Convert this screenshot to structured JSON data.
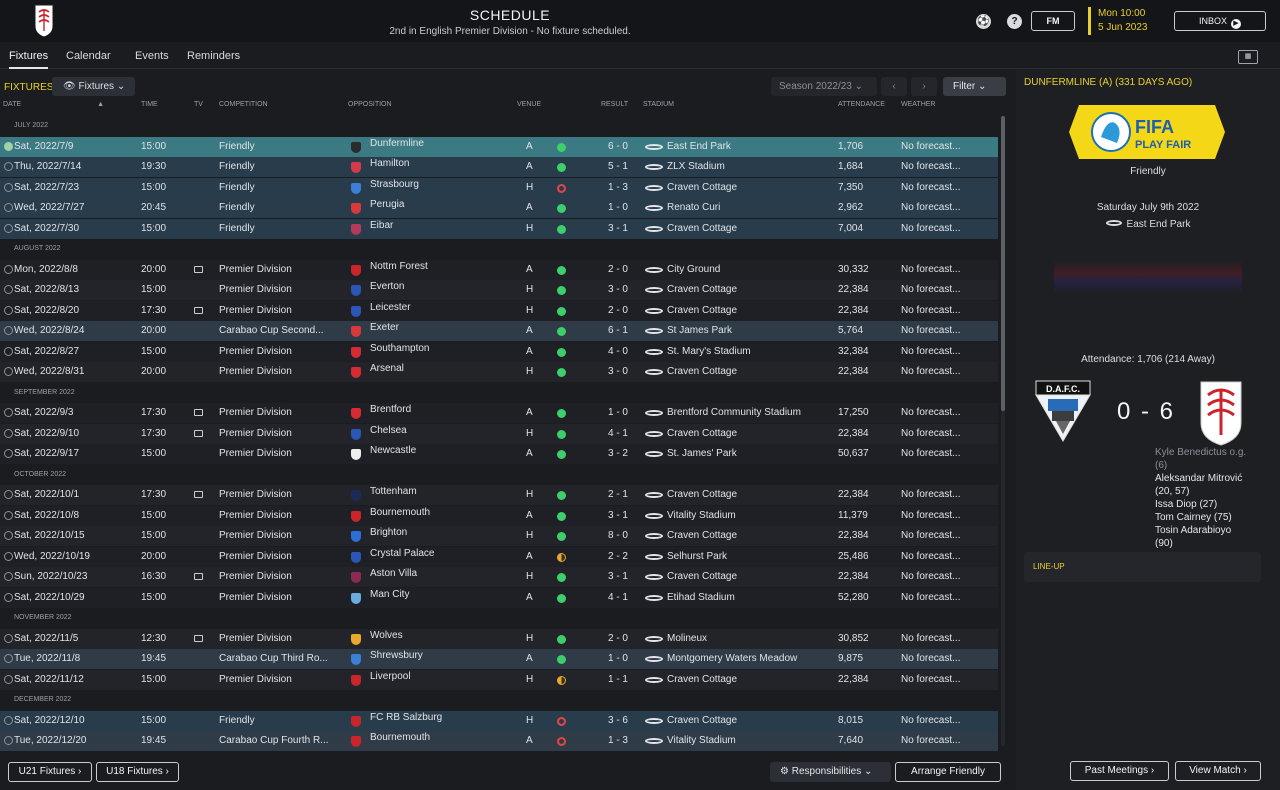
{
  "header": {
    "title": "SCHEDULE",
    "subtitle": "2nd in English Premier Division - No fixture scheduled.",
    "fm_label": "FM",
    "time": "Mon 10:00",
    "date": "5 Jun 2023",
    "inbox_label": "INBOX",
    "accent_color": "#e9d02b"
  },
  "tabs": [
    {
      "label": "Fixtures"
    },
    {
      "label": "Calendar"
    },
    {
      "label": "Events"
    },
    {
      "label": "Reminders"
    }
  ],
  "fixtures_panel": {
    "title": "FIXTURES",
    "view_dropdown": "Fixtures",
    "season": "Season 2022/23",
    "filter_label": "Filter",
    "columns": {
      "date": "DATE",
      "time": "TIME",
      "tv": "TV",
      "competition": "COMPETITION",
      "opposition": "OPPOSITION",
      "venue": "VENUE",
      "result": "RESULT",
      "stadium": "STADIUM",
      "attendance": "ATTENDANCE",
      "weather": "WEATHER"
    },
    "months": [
      "JULY 2022",
      "AUGUST 2022",
      "SEPTEMBER 2022",
      "OCTOBER 2022",
      "NOVEMBER 2022",
      "DECEMBER 2022"
    ],
    "rows": [
      {
        "date": "Sat, 2022/7/9",
        "time": "15:00",
        "tv": false,
        "competition": "Friendly",
        "opposition": "Dunfermline",
        "venue": "A",
        "outcome": "W",
        "result": "6 - 0",
        "stadium": "East End Park",
        "attendance": "1,706",
        "weather": "No forecast...",
        "badge_color": "#2b2b2b"
      },
      {
        "date": "Thu, 2022/7/14",
        "time": "19:30",
        "tv": false,
        "competition": "Friendly",
        "opposition": "Hamilton",
        "venue": "A",
        "outcome": "W",
        "result": "5 - 1",
        "stadium": "ZLX Stadium",
        "attendance": "1,684",
        "weather": "No forecast...",
        "badge_color": "#d63a4a"
      },
      {
        "date": "Sat, 2022/7/23",
        "time": "15:00",
        "tv": false,
        "competition": "Friendly",
        "opposition": "Strasbourg",
        "venue": "H",
        "outcome": "L",
        "result": "1 - 3",
        "stadium": "Craven Cottage",
        "attendance": "7,350",
        "weather": "No forecast...",
        "badge_color": "#3b7fd6"
      },
      {
        "date": "Wed, 2022/7/27",
        "time": "20:45",
        "tv": false,
        "competition": "Friendly",
        "opposition": "Perugia",
        "venue": "A",
        "outcome": "W",
        "result": "1 - 0",
        "stadium": "Renato Curi",
        "attendance": "2,962",
        "weather": "No forecast...",
        "badge_color": "#d63a3a"
      },
      {
        "date": "Sat, 2022/7/30",
        "time": "15:00",
        "tv": false,
        "competition": "Friendly",
        "opposition": "Eibar",
        "venue": "H",
        "outcome": "W",
        "result": "3 - 1",
        "stadium": "Craven Cottage",
        "attendance": "7,004",
        "weather": "No forecast...",
        "badge_color": "#b23a5a"
      },
      {
        "date": "Mon, 2022/8/8",
        "time": "20:00",
        "tv": true,
        "competition": "Premier Division",
        "opposition": "Nottm Forest",
        "venue": "A",
        "outcome": "W",
        "result": "2 - 0",
        "stadium": "City Ground",
        "attendance": "30,332",
        "weather": "No forecast...",
        "badge_color": "#c9252b"
      },
      {
        "date": "Sat, 2022/8/13",
        "time": "15:00",
        "tv": false,
        "competition": "Premier Division",
        "opposition": "Everton",
        "venue": "H",
        "outcome": "W",
        "result": "3 - 0",
        "stadium": "Craven Cottage",
        "attendance": "22,384",
        "weather": "No forecast...",
        "badge_color": "#2c55b8"
      },
      {
        "date": "Sat, 2022/8/20",
        "time": "17:30",
        "tv": true,
        "competition": "Premier Division",
        "opposition": "Leicester",
        "venue": "H",
        "outcome": "W",
        "result": "2 - 0",
        "stadium": "Craven Cottage",
        "attendance": "22,384",
        "weather": "No forecast...",
        "badge_color": "#2c55b8"
      },
      {
        "date": "Wed, 2022/8/24",
        "time": "20:00",
        "tv": false,
        "competition": "Carabao Cup Second...",
        "opposition": "Exeter",
        "venue": "A",
        "outcome": "W",
        "result": "6 - 1",
        "stadium": "St James Park",
        "attendance": "5,764",
        "weather": "No forecast...",
        "badge_color": "#d63a3a"
      },
      {
        "date": "Sat, 2022/8/27",
        "time": "15:00",
        "tv": false,
        "competition": "Premier Division",
        "opposition": "Southampton",
        "venue": "A",
        "outcome": "W",
        "result": "4 - 0",
        "stadium": "St. Mary's Stadium",
        "attendance": "32,384",
        "weather": "No forecast...",
        "badge_color": "#d62a35"
      },
      {
        "date": "Wed, 2022/8/31",
        "time": "20:00",
        "tv": false,
        "competition": "Premier Division",
        "opposition": "Arsenal",
        "venue": "H",
        "outcome": "W",
        "result": "3 - 0",
        "stadium": "Craven Cottage",
        "attendance": "22,384",
        "weather": "No forecast...",
        "badge_color": "#d62a35"
      },
      {
        "date": "Sat, 2022/9/3",
        "time": "17:30",
        "tv": true,
        "competition": "Premier Division",
        "opposition": "Brentford",
        "venue": "A",
        "outcome": "W",
        "result": "1 - 0",
        "stadium": "Brentford Community Stadium",
        "attendance": "17,250",
        "weather": "No forecast...",
        "badge_color": "#d62a35"
      },
      {
        "date": "Sat, 2022/9/10",
        "time": "17:30",
        "tv": true,
        "competition": "Premier Division",
        "opposition": "Chelsea",
        "venue": "H",
        "outcome": "W",
        "result": "4 - 1",
        "stadium": "Craven Cottage",
        "attendance": "22,384",
        "weather": "No forecast...",
        "badge_color": "#2c55b8"
      },
      {
        "date": "Sat, 2022/9/17",
        "time": "15:00",
        "tv": false,
        "competition": "Premier Division",
        "opposition": "Newcastle",
        "venue": "A",
        "outcome": "W",
        "result": "3 - 2",
        "stadium": "St. James' Park",
        "attendance": "50,637",
        "weather": "No forecast...",
        "badge_color": "#eeeeee"
      },
      {
        "date": "Sat, 2022/10/1",
        "time": "17:30",
        "tv": true,
        "competition": "Premier Division",
        "opposition": "Tottenham",
        "venue": "H",
        "outcome": "W",
        "result": "2 - 1",
        "stadium": "Craven Cottage",
        "attendance": "22,384",
        "weather": "No forecast...",
        "badge_color": "#1c2a55"
      },
      {
        "date": "Sat, 2022/10/8",
        "time": "15:00",
        "tv": false,
        "competition": "Premier Division",
        "opposition": "Bournemouth",
        "venue": "A",
        "outcome": "W",
        "result": "3 - 1",
        "stadium": "Vitality Stadium",
        "attendance": "11,379",
        "weather": "No forecast...",
        "badge_color": "#c9252b"
      },
      {
        "date": "Sat, 2022/10/15",
        "time": "15:00",
        "tv": false,
        "competition": "Premier Division",
        "opposition": "Brighton",
        "venue": "H",
        "outcome": "W",
        "result": "8 - 0",
        "stadium": "Craven Cottage",
        "attendance": "22,384",
        "weather": "No forecast...",
        "badge_color": "#2c6fd6"
      },
      {
        "date": "Wed, 2022/10/19",
        "time": "20:00",
        "tv": false,
        "competition": "Premier Division",
        "opposition": "Crystal Palace",
        "venue": "A",
        "outcome": "D",
        "result": "2 - 2",
        "stadium": "Selhurst Park",
        "attendance": "25,486",
        "weather": "No forecast...",
        "badge_color": "#2c55b8"
      },
      {
        "date": "Sun, 2022/10/23",
        "time": "16:30",
        "tv": true,
        "competition": "Premier Division",
        "opposition": "Aston Villa",
        "venue": "H",
        "outcome": "W",
        "result": "3 - 1",
        "stadium": "Craven Cottage",
        "attendance": "22,384",
        "weather": "No forecast...",
        "badge_color": "#8b2a55"
      },
      {
        "date": "Sat, 2022/10/29",
        "time": "15:00",
        "tv": false,
        "competition": "Premier Division",
        "opposition": "Man City",
        "venue": "A",
        "outcome": "W",
        "result": "4 - 1",
        "stadium": "Etihad Stadium",
        "attendance": "52,280",
        "weather": "No forecast...",
        "badge_color": "#6cabdd"
      },
      {
        "date": "Sat, 2022/11/5",
        "time": "12:30",
        "tv": true,
        "competition": "Premier Division",
        "opposition": "Wolves",
        "venue": "H",
        "outcome": "W",
        "result": "2 - 0",
        "stadium": "Molineux",
        "attendance": "30,852",
        "weather": "No forecast...",
        "badge_color": "#e9a92b"
      },
      {
        "date": "Tue, 2022/11/8",
        "time": "19:45",
        "tv": false,
        "competition": "Carabao Cup Third Ro...",
        "opposition": "Shrewsbury",
        "venue": "A",
        "outcome": "W",
        "result": "1 - 0",
        "stadium": "Montgomery Waters Meadow",
        "attendance": "9,875",
        "weather": "No forecast...",
        "badge_color": "#3b7fd6"
      },
      {
        "date": "Sat, 2022/11/12",
        "time": "15:00",
        "tv": false,
        "competition": "Premier Division",
        "opposition": "Liverpool",
        "venue": "H",
        "outcome": "D",
        "result": "1 - 1",
        "stadium": "Craven Cottage",
        "attendance": "22,384",
        "weather": "No forecast...",
        "badge_color": "#c9252b"
      },
      {
        "date": "Sat, 2022/12/10",
        "time": "15:00",
        "tv": false,
        "competition": "Friendly",
        "opposition": "FC RB Salzburg",
        "venue": "H",
        "outcome": "L",
        "result": "3 - 6",
        "stadium": "Craven Cottage",
        "attendance": "8,015",
        "weather": "No forecast...",
        "badge_color": "#c9252b"
      },
      {
        "date": "Tue, 2022/12/20",
        "time": "19:45",
        "tv": false,
        "competition": "Carabao Cup Fourth R...",
        "opposition": "Bournemouth",
        "venue": "A",
        "outcome": "L",
        "result": "1 - 3",
        "stadium": "Vitality Stadium",
        "attendance": "7,640",
        "weather": "No forecast...",
        "badge_color": "#c9252b"
      }
    ]
  },
  "bottom_buttons": {
    "u21": "U21 Fixtures",
    "u18": "U18 Fixtures",
    "responsibilities": "Responsibilities",
    "arrange_friendly": "Arrange Friendly"
  },
  "match_panel": {
    "heading": "DUNFERMLINE (A) (331 DAYS AGO)",
    "competition_logo_line1": "FIFA",
    "competition_logo_line2": "PLAY FAIR",
    "competition": "Friendly",
    "date": "Saturday July 9th 2022",
    "venue": "East End Park",
    "attendance": "Attendance: 1,706 (214 Away)",
    "home_crest_label": "D.A.F.C.",
    "score": "0 - 6",
    "scorers": [
      {
        "name": "Kyle Benedictus o.g.",
        "minutes": "(6)",
        "own_goal": true
      },
      {
        "name": "Aleksandar Mitrović",
        "minutes": "(20, 57)",
        "own_goal": false
      },
      {
        "name": "Issa Diop",
        "minutes": "(27)",
        "own_goal": false
      },
      {
        "name": "Tom Cairney",
        "minutes": "(75)",
        "own_goal": false
      },
      {
        "name": "Tosin Adarabioyo",
        "minutes": "(90)",
        "own_goal": false
      }
    ],
    "lineup_label": "LINE-UP",
    "past_meetings": "Past Meetings",
    "view_match": "View Match"
  }
}
